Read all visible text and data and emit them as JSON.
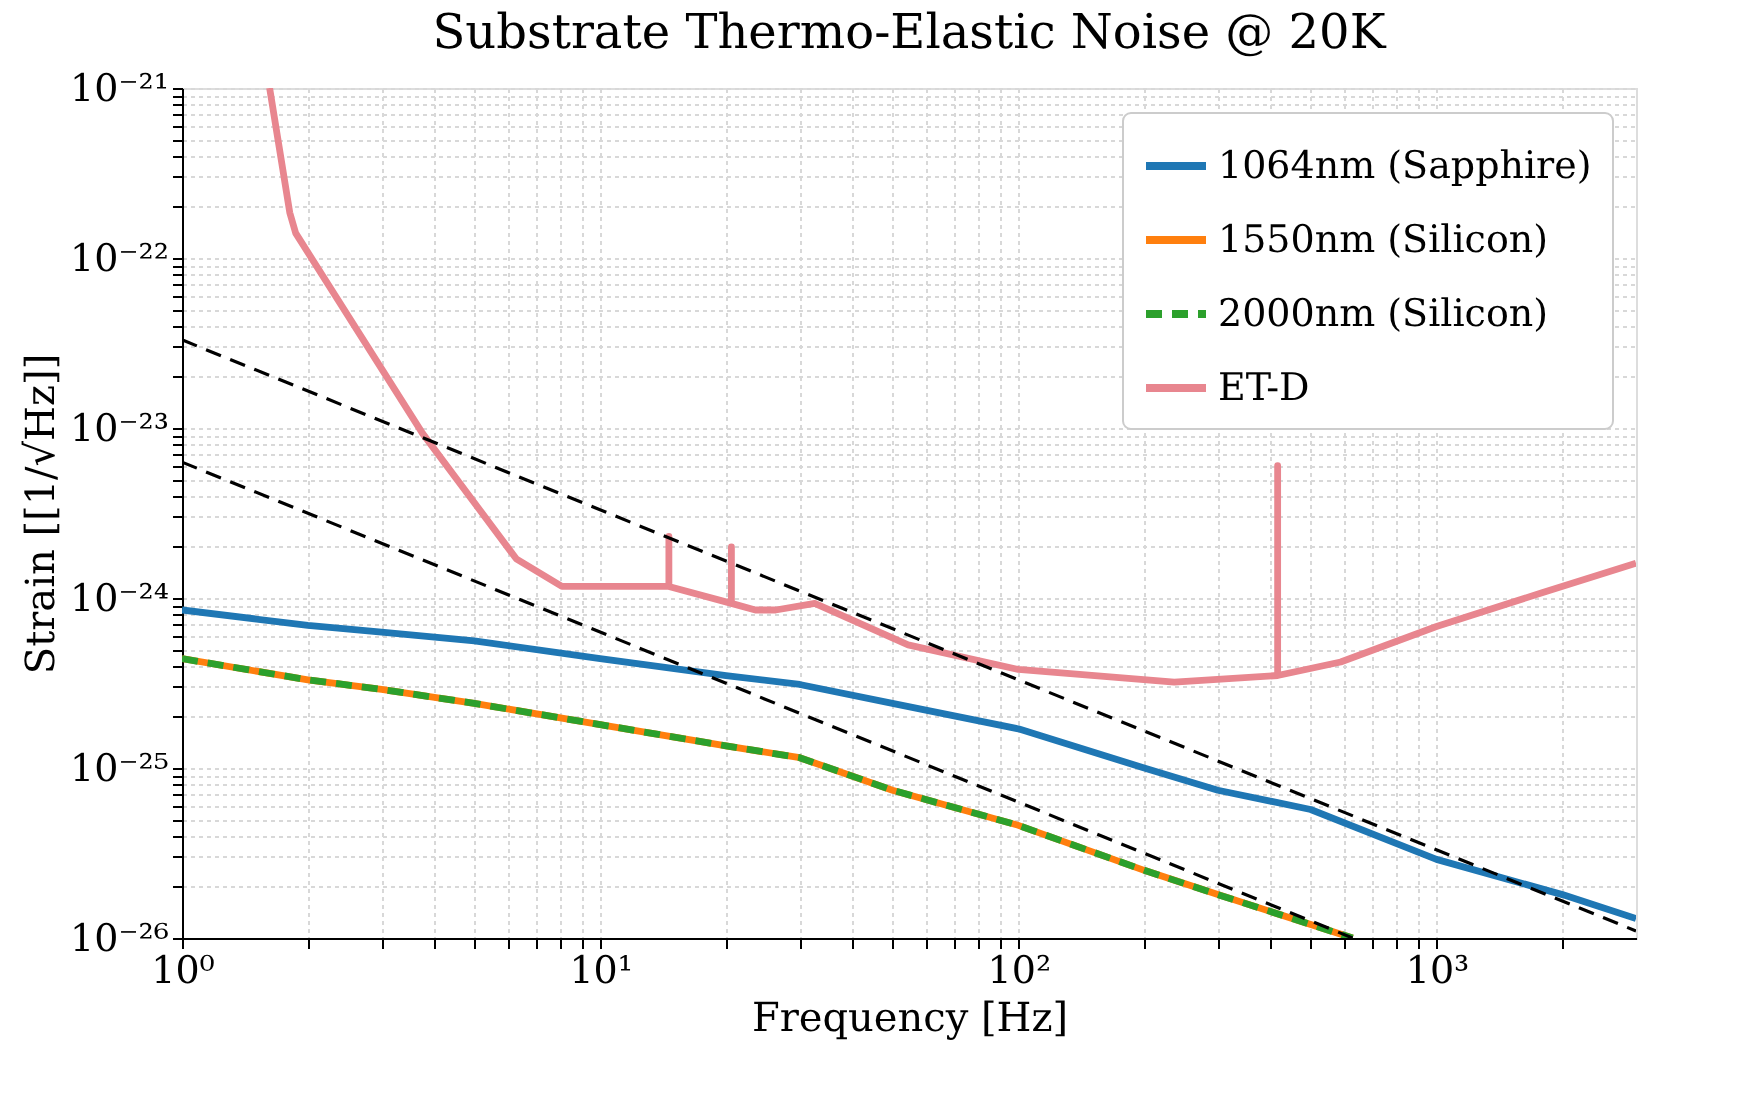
{
  "chart_data": {
    "type": "line",
    "title": "Substrate Thermo-Elastic Noise @ 20K",
    "xlabel": "Frequency [Hz]",
    "ylabel": "Strain [[1/√Hz]]",
    "log": "xy",
    "grid": true,
    "legend": "top right",
    "xlim": [
      1,
      3000
    ],
    "ylim": [
      1e-26,
      1e-21
    ],
    "xticks": [
      {
        "value": 1,
        "label": "10⁰"
      },
      {
        "value": 10,
        "label": "10¹"
      },
      {
        "value": 100,
        "label": "10²"
      },
      {
        "value": 1000,
        "label": "10³"
      }
    ],
    "yticks": [
      {
        "value": 1e-26,
        "label": "10⁻²⁶"
      },
      {
        "value": 1e-25,
        "label": "10⁻²⁵"
      },
      {
        "value": 1e-24,
        "label": "10⁻²⁴"
      },
      {
        "value": 1e-23,
        "label": "10⁻²³"
      },
      {
        "value": 1e-22,
        "label": "10⁻²²"
      },
      {
        "value": 1e-21,
        "label": "10⁻²¹"
      }
    ],
    "series": [
      {
        "name": "1064nm (Sapphire)",
        "color": "#1f77b4",
        "line_style": "solid",
        "x": [
          1,
          2,
          3,
          5,
          10,
          20,
          30,
          50,
          100,
          200,
          300,
          500,
          1000,
          2000,
          3000
        ],
        "values": [
          8.5e-25,
          6.9e-25,
          6.3e-25,
          5.6e-25,
          4.4e-25,
          3.5e-25,
          3.1e-25,
          2.4e-25,
          1.7e-25,
          1e-25,
          7.4e-26,
          5.7e-26,
          2.9e-26,
          1.8e-26,
          1.3e-26
        ]
      },
      {
        "name": "1550nm (Silicon)",
        "color": "#ff7f0e",
        "line_style": "solid",
        "x": [
          1,
          2,
          3,
          5,
          10,
          20,
          30,
          50,
          100,
          200,
          300,
          630
        ],
        "values": [
          4.4e-25,
          3.3e-25,
          2.9e-25,
          2.4e-25,
          1.8e-25,
          1.35e-25,
          1.15e-25,
          7.4e-26,
          4.6e-26,
          2.5e-26,
          1.8e-26,
          1e-26
        ]
      },
      {
        "name": "2000nm (Silicon)",
        "color": "#2ca02c",
        "line_style": "dashed",
        "x": [
          1,
          2,
          3,
          5,
          10,
          20,
          30,
          50,
          100,
          200,
          300,
          630
        ],
        "values": [
          4.4e-25,
          3.3e-25,
          2.9e-25,
          2.4e-25,
          1.8e-25,
          1.35e-25,
          1.15e-25,
          7.4e-26,
          4.6e-26,
          2.5e-26,
          1.8e-26,
          1e-26
        ]
      },
      {
        "name": "ET-D",
        "color": "#e8868f",
        "line_style": "solid",
        "x": [
          1.62,
          1.81,
          1.87,
          3.76,
          6.3,
          8.1,
          14.6,
          14.6,
          14.6,
          20.6,
          20.6,
          20.6,
          23.5,
          26.3,
          32.6,
          54.5,
          100,
          236,
          417,
          417,
          417,
          590,
          1000,
          1780,
          3000
        ],
        "values": [
          1e-21,
          1.85e-22,
          1.4e-22,
          9.3e-24,
          1.7e-24,
          1.17e-24,
          1.17e-24,
          2.3e-24,
          1.17e-24,
          9.3e-25,
          2e-24,
          9.3e-25,
          8.5e-25,
          8.5e-25,
          9.3e-25,
          5.3e-25,
          3.8e-25,
          3.2e-25,
          3.5e-25,
          6e-24,
          3.5e-25,
          4.2e-25,
          6.8e-25,
          1.07e-24,
          1.6e-24
        ]
      },
      {
        "color": "#000000",
        "line_style": "dashed",
        "x": [
          1,
          3000
        ],
        "values": [
          3.3e-23,
          1.1e-26
        ]
      },
      {
        "color": "#000000",
        "line_style": "dashed",
        "x": [
          1,
          630
        ],
        "values": [
          6.3e-24,
          1e-26
        ]
      }
    ]
  }
}
